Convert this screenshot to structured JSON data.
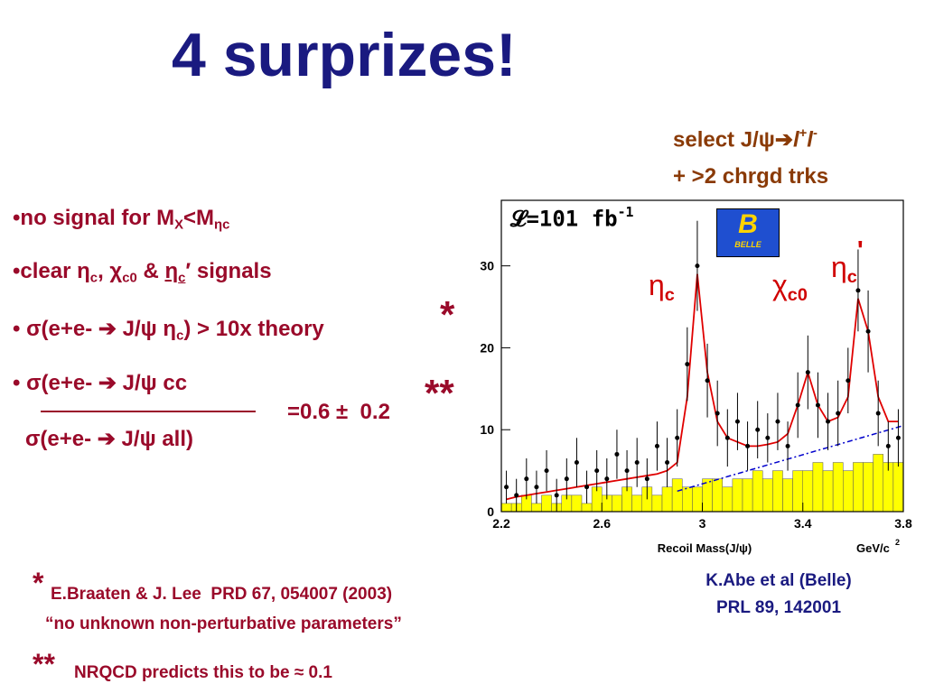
{
  "title": "4 surprizes!",
  "selection": [
    "select J/ψ➔",
    "l",
    "+",
    "l",
    "-",
    "+ >2 chrgd trks"
  ],
  "bullets": [
    [
      "•no signal for M",
      "X",
      "<M",
      "ηc"
    ],
    [
      "•clear ",
      "η",
      "c",
      ", ",
      "χ",
      "c0",
      " & ",
      "η",
      "c",
      "′",
      " signals"
    ],
    [
      "• ",
      "σ",
      "(e+e- ➔ J/ψ ",
      "η",
      "c",
      ") > 10x theory",
      "*"
    ],
    [
      "• ",
      "σ",
      "(e+e- ➔ J/ψ cc"
    ]
  ],
  "ratio": {
    "denominator": "σ(e+e- ➔ J/ψ all)",
    "result": "=0.6 ±  0.2",
    "mark": "**"
  },
  "references": [
    {
      "mark": "*",
      "lines": [
        "E.Braaten & J. Lee  PRD 67, 054007 (2003)",
        "“no unknown non-perturbative parameters”"
      ]
    },
    {
      "mark": "**",
      "lines": [
        "NRQCD predicts this to be ≈ 0.1"
      ]
    }
  ],
  "source": [
    "K.Abe et al (Belle)",
    "PRL 89, 142001"
  ],
  "chart_data": {
    "type": "scatter",
    "xlabel": "Recoil Mass(J/ψ)",
    "xunit": [
      "GeV/c",
      "2"
    ],
    "lumi": [
      "𝓛=101 fb",
      "-1"
    ],
    "logo": [
      "B",
      "BELLE"
    ],
    "peaks": [
      [
        "η",
        "c"
      ],
      [
        "χ",
        "c0"
      ],
      [
        "η",
        "c",
        "'"
      ]
    ],
    "xlim": [
      2.2,
      3.8
    ],
    "ylim": [
      0,
      38
    ],
    "xticks": [
      2.2,
      2.6,
      3,
      3.4,
      3.8
    ],
    "yticks": [
      0,
      10,
      20,
      30
    ],
    "x": [
      2.22,
      2.26,
      2.3,
      2.34,
      2.38,
      2.42,
      2.46,
      2.5,
      2.54,
      2.58,
      2.62,
      2.66,
      2.7,
      2.74,
      2.78,
      2.82,
      2.86,
      2.9,
      2.94,
      2.98,
      3.02,
      3.06,
      3.1,
      3.14,
      3.18,
      3.22,
      3.26,
      3.3,
      3.34,
      3.38,
      3.42,
      3.46,
      3.5,
      3.54,
      3.58,
      3.62,
      3.66,
      3.7,
      3.74,
      3.78
    ],
    "values": [
      3,
      2,
      4,
      3,
      5,
      2,
      4,
      6,
      3,
      5,
      4,
      7,
      5,
      6,
      4,
      8,
      6,
      9,
      18,
      30,
      16,
      12,
      9,
      11,
      8,
      10,
      9,
      11,
      8,
      13,
      17,
      13,
      11,
      12,
      16,
      27,
      22,
      12,
      8,
      9
    ],
    "errors": [
      2,
      2,
      2.5,
      2,
      2.5,
      2,
      2.5,
      3,
      2,
      2.5,
      2.5,
      3,
      2.5,
      3,
      2.5,
      3,
      3,
      3.5,
      4.5,
      5.5,
      4.5,
      4,
      3.5,
      3.5,
      3,
      3.5,
      3,
      3.5,
      3,
      4,
      4.5,
      4,
      3.5,
      4,
      4,
      5,
      5,
      4,
      3,
      3.5
    ],
    "color": "#000000",
    "histogram": {
      "bins": [
        2.2,
        2.24,
        2.28,
        2.32,
        2.36,
        2.4,
        2.44,
        2.48,
        2.52,
        2.56,
        2.6,
        2.64,
        2.68,
        2.72,
        2.76,
        2.8,
        2.84,
        2.88,
        2.92,
        2.96,
        3.0,
        3.04,
        3.08,
        3.12,
        3.16,
        3.2,
        3.24,
        3.28,
        3.32,
        3.36,
        3.4,
        3.44,
        3.48,
        3.52,
        3.56,
        3.6,
        3.64,
        3.68,
        3.72,
        3.76,
        3.8
      ],
      "counts": [
        1,
        1,
        2,
        1,
        2,
        1,
        2,
        2,
        1,
        3,
        2,
        2,
        3,
        2,
        3,
        2,
        3,
        4,
        3,
        3,
        4,
        4,
        3,
        4,
        4,
        5,
        4,
        5,
        4,
        5,
        5,
        6,
        5,
        6,
        5,
        6,
        6,
        7,
        6,
        6
      ],
      "color": "#ffff00"
    },
    "fit": {
      "color": "#e00000",
      "values": [
        1.5,
        1.8,
        2,
        2.2,
        2.4,
        2.6,
        2.8,
        3,
        3.2,
        3.4,
        3.6,
        3.8,
        4,
        4.2,
        4.4,
        4.6,
        5,
        6,
        14,
        29,
        17,
        11,
        9,
        8.5,
        8,
        8,
        8.2,
        8.5,
        9.5,
        13,
        17,
        13,
        11,
        11.5,
        14,
        26,
        22,
        14,
        11,
        11
      ]
    },
    "background": {
      "color": "#0000cc",
      "x": [
        2.9,
        3.8
      ],
      "values": [
        2.5,
        10.5
      ]
    }
  }
}
